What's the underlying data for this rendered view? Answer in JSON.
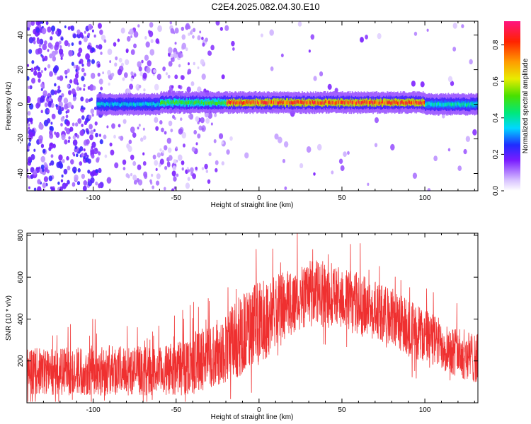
{
  "title": "C2E4.2025.082.04.30.E10",
  "chart_data": [
    {
      "type": "heatmap",
      "xlabel": "Height of straight line (km)",
      "ylabel": "Frequency (Hz)",
      "xlim": [
        -140,
        132
      ],
      "ylim": [
        -50,
        48
      ],
      "xticks": [
        -100,
        -50,
        0,
        50,
        100
      ],
      "yticks": [
        -40,
        -20,
        0,
        20,
        40
      ],
      "colorbar": {
        "label": "Normalized spectral amplitude",
        "range": [
          0.0,
          0.93
        ],
        "ticks": [
          0.0,
          0.2,
          0.4,
          0.6,
          0.8
        ],
        "tick_labels": [
          "0.0",
          "0.2",
          "0.4",
          "0.6",
          "0.8"
        ]
      },
      "band": {
        "description_free": true,
        "center_hz": 1,
        "segments": [
          {
            "x_start": -100,
            "x_end": -60,
            "center": 0,
            "max_amp": 0.4
          },
          {
            "x_start": -60,
            "x_end": -20,
            "center": 1,
            "max_amp": 0.55
          },
          {
            "x_start": -20,
            "x_end": 100,
            "center": 1,
            "max_amp": 0.9
          },
          {
            "x_start": 100,
            "x_end": 132,
            "center": 0,
            "max_amp": 0.45
          }
        ]
      },
      "grid": false
    },
    {
      "type": "line",
      "xlabel": "Height of straight line (km)",
      "ylabel": "SNR (10 * v/v)",
      "xlim": [
        -140,
        132
      ],
      "ylim": [
        0,
        810
      ],
      "xticks": [
        -100,
        -50,
        0,
        50,
        100
      ],
      "yticks": [
        200,
        400,
        600,
        800
      ],
      "series": [
        {
          "color": "#ef3030",
          "envelope_x": [
            -140,
            -120,
            -100,
            -80,
            -60,
            -50,
            -40,
            -30,
            -20,
            -10,
            0,
            10,
            20,
            30,
            40,
            50,
            60,
            70,
            80,
            90,
            100,
            110,
            120,
            132
          ],
          "envelope_mean": [
            150,
            150,
            155,
            155,
            150,
            160,
            190,
            220,
            260,
            330,
            380,
            430,
            480,
            520,
            520,
            500,
            470,
            440,
            410,
            360,
            320,
            280,
            240,
            210
          ],
          "envelope_halfwidth": [
            110,
            115,
            120,
            120,
            115,
            130,
            150,
            150,
            170,
            200,
            200,
            180,
            170,
            160,
            160,
            150,
            150,
            140,
            140,
            140,
            130,
            120,
            120,
            120
          ]
        }
      ],
      "grid": false
    }
  ]
}
